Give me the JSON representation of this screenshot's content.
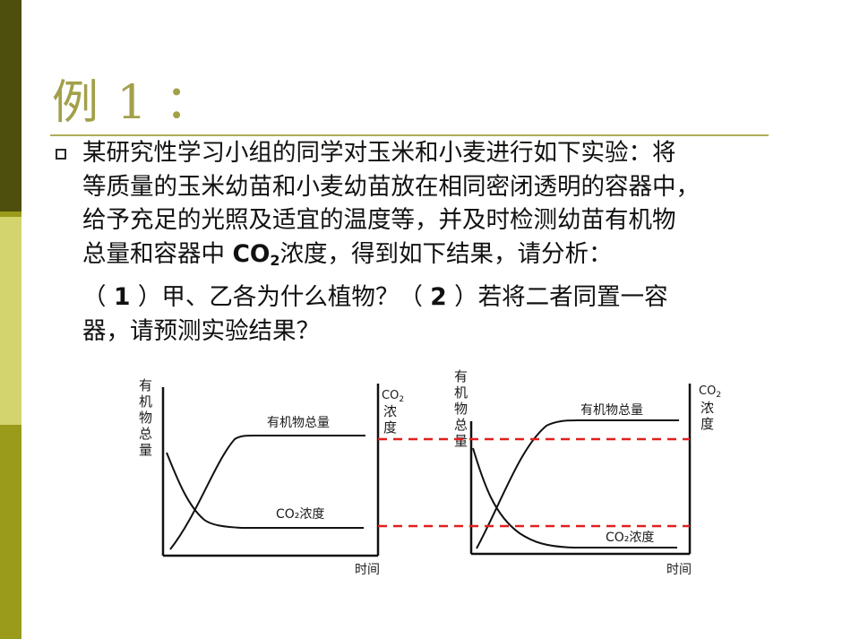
{
  "slide": {
    "title": "例 1 ：",
    "accent_colors": [
      "#4f4f0d",
      "#9b9b1b",
      "#d4d46f",
      "#9b9b1b"
    ],
    "title_color": "#a3a04a",
    "bullet_icon": "square-bullet-icon"
  },
  "body": {
    "line1": "某研究性学习小组的同学对玉米和小麦进行如下实验：将",
    "line2": "等质量的玉米幼苗和小麦幼苗放在相同密闭透明的容器中，",
    "line3": "给予充足的光照及适宜的温度等，并及时检测幼苗有机物",
    "line4_a": "总量和容器中 ",
    "line4_co": "CO",
    "line4_sub": "2",
    "line4_b": "浓度，得到如下结果，请分析：",
    "q1_open": "（ ",
    "q1_num": "1",
    "q1_text": " ）甲、乙各为什么植物？（ ",
    "q2_num": "2",
    "q2_text": " ）若将二者同置一容",
    "line6": "器，请预测实验结果？"
  },
  "figure": {
    "dashed_color": "#e0201f",
    "charts": [
      {
        "y_left_label": [
          "有",
          "机",
          "物",
          "总",
          "量"
        ],
        "y_right_label_co": "CO",
        "y_right_label_sub": "2",
        "y_right_label_rest": [
          "浓",
          "度"
        ],
        "curve_upper_label": "有机物总量",
        "curve_lower_label": "CO₂浓度",
        "x_label": "时间"
      },
      {
        "y_left_label": [
          "有",
          "机",
          "物",
          "总",
          "量"
        ],
        "y_right_label_co": "CO",
        "y_right_label_sub": "2",
        "y_right_label_rest": [
          "浓",
          "度"
        ],
        "curve_upper_label": "有机物总量",
        "curve_lower_label": "CO₂浓度",
        "x_label": "时间"
      }
    ]
  }
}
